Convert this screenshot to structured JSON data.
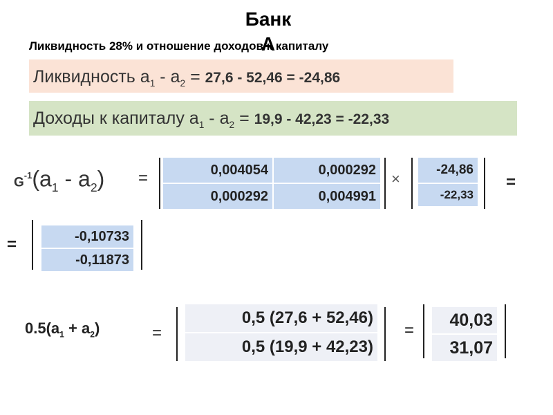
{
  "header": {
    "title": "Банк А",
    "subtitle": "Ликвидность 28% и отношение доходов к капиталу"
  },
  "lines": [
    [
      "Ликвидность а",
      "1",
      " - а",
      "2",
      " = ",
      "27,6  - 52,46 = -24,86"
    ],
    [
      "Доходы к капиталу а",
      "1",
      " - а",
      "2",
      " = ",
      "19,9  - 42,23 = -22,33"
    ]
  ],
  "operators": {
    "equals": "=",
    "times": "×"
  },
  "formula1": {
    "label": [
      "G",
      "-1",
      "(а",
      "1",
      " - а",
      "2",
      ")"
    ],
    "matrix": [
      [
        "0,004054",
        "0,000292"
      ],
      [
        "0,000292",
        "0,004991"
      ]
    ],
    "vector": [
      "-24,86",
      "-22,33"
    ],
    "result": [
      "-0,10733",
      "-0,11873"
    ]
  },
  "formula2": {
    "label": [
      "0.5(a",
      "1",
      " + a",
      "2",
      ")"
    ],
    "expressions": [
      "0,5 (27,6 + 52,46)",
      "0,5 (19,9 + 42,23)"
    ],
    "result": [
      "40,03",
      "31,07"
    ]
  }
}
